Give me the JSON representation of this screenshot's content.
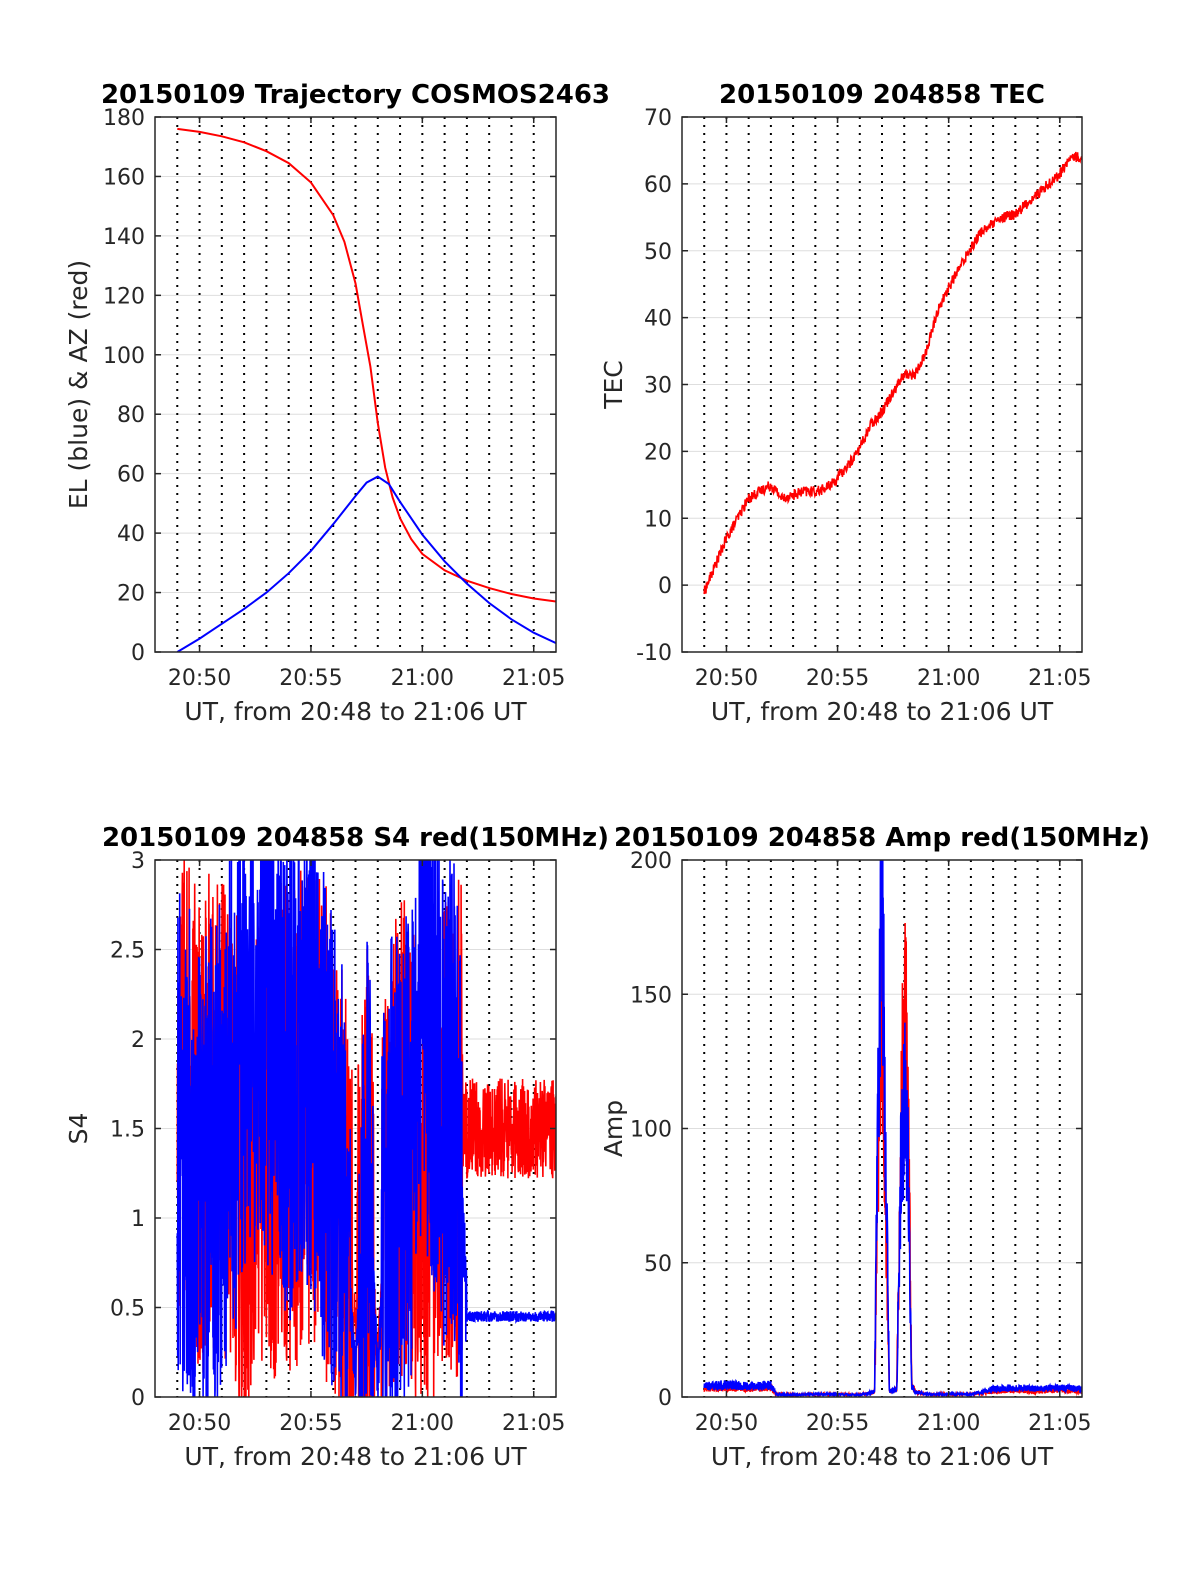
{
  "chart_data": [
    {
      "id": "trajectory",
      "type": "line",
      "title": "20150109 Trajectory COSMOS2463",
      "xlabel": "UT, from 20:48 to 21:06 UT",
      "ylabel": "EL (blue) & AZ (red)",
      "x_ticks": [
        "20:50",
        "20:55",
        "21:00",
        "21:05"
      ],
      "y_ticks": [
        "0",
        "20",
        "40",
        "60",
        "80",
        "100",
        "120",
        "140",
        "160",
        "180"
      ],
      "xlim": [
        "20:48",
        "21:06"
      ],
      "ylim": [
        0,
        180
      ],
      "grid": true,
      "series": [
        {
          "color": "#ff0000",
          "x": [
            "20:49",
            "20:50",
            "20:51",
            "20:52",
            "20:53",
            "20:54",
            "20:55",
            "20:56",
            "20:56:30",
            "20:57",
            "20:57:20",
            "20:57:40",
            "20:58",
            "20:58:20",
            "20:58:40",
            "20:59",
            "20:59:30",
            "21:00",
            "21:01",
            "21:02",
            "21:03",
            "21:04",
            "21:05",
            "21:06"
          ],
          "values": [
            176,
            175,
            173.5,
            171.5,
            168.5,
            164.5,
            158,
            147,
            138,
            124,
            110,
            96,
            77,
            62,
            52,
            45,
            38,
            33,
            27.5,
            24,
            21.5,
            19.5,
            18,
            17
          ]
        },
        {
          "color": "#0000ff",
          "x": [
            "20:49",
            "20:50",
            "20:51",
            "20:52",
            "20:53",
            "20:54",
            "20:55",
            "20:56",
            "20:57",
            "20:57:30",
            "20:58",
            "20:58:30",
            "20:59",
            "21:00",
            "21:01",
            "21:02",
            "21:03",
            "21:04",
            "21:05",
            "21:06"
          ],
          "values": [
            0,
            4.5,
            9.5,
            14.5,
            20,
            26.5,
            34,
            43,
            52.5,
            57,
            59,
            56.5,
            50.5,
            39.5,
            30.5,
            23,
            16.5,
            11,
            6.5,
            3
          ]
        }
      ]
    },
    {
      "id": "tec",
      "type": "line",
      "title": "20150109 204858 TEC",
      "xlabel": "UT, from 20:48 to 21:06 UT",
      "ylabel": "TEC",
      "x_ticks": [
        "20:50",
        "20:55",
        "21:00",
        "21:05"
      ],
      "y_ticks": [
        "-10",
        "0",
        "10",
        "20",
        "30",
        "40",
        "50",
        "60",
        "70"
      ],
      "xlim": [
        "20:48",
        "21:06"
      ],
      "ylim": [
        -10,
        70
      ],
      "grid": true,
      "series": [
        {
          "color": "#ff0000",
          "x": [
            "20:49",
            "20:49:30",
            "20:50",
            "20:50:30",
            "20:51",
            "20:51:30",
            "20:52",
            "20:52:30",
            "20:53",
            "20:53:30",
            "20:54",
            "20:54:30",
            "20:55",
            "20:55:30",
            "20:56",
            "20:56:30",
            "20:57",
            "20:57:30",
            "20:58",
            "20:58:30",
            "20:59",
            "20:59:30",
            "21:00",
            "21:00:30",
            "21:01",
            "21:01:30",
            "21:02",
            "21:02:30",
            "21:03",
            "21:03:30",
            "21:04",
            "21:04:30",
            "21:05",
            "21:05:30",
            "21:06"
          ],
          "values": [
            -1,
            3,
            7,
            10,
            13,
            14,
            15,
            13,
            13.5,
            14,
            14,
            14.5,
            16,
            18,
            20.5,
            24,
            26,
            29,
            31.5,
            31.5,
            35,
            41,
            44.5,
            47.5,
            50.5,
            53,
            54,
            55,
            55.5,
            57,
            58.5,
            60,
            61.5,
            64,
            64
          ]
        }
      ]
    },
    {
      "id": "s4",
      "type": "line",
      "title": "20150109 204858 S4 red(150MHz)",
      "xlabel": "UT, from 20:48 to 21:06 UT",
      "ylabel": "S4",
      "x_ticks": [
        "20:50",
        "20:55",
        "21:00",
        "21:05"
      ],
      "y_ticks": [
        "0",
        "0.5",
        "1",
        "1.5",
        "2",
        "2.5",
        "3"
      ],
      "xlim": [
        "20:48",
        "21:06"
      ],
      "ylim": [
        0,
        3
      ],
      "grid": true,
      "series": [
        {
          "color": "#ff0000",
          "x": [
            "20:49",
            "20:50",
            "20:51",
            "20:52",
            "20:53",
            "20:54",
            "20:55",
            "20:56",
            "20:56:30",
            "20:57",
            "20:57:30",
            "20:58",
            "20:58:30",
            "20:59",
            "20:59:30",
            "21:00",
            "21:00:30",
            "21:01",
            "21:01:30",
            "21:02",
            "21:03",
            "21:04",
            "21:05",
            "21:06"
          ],
          "values": [
            1.8,
            1.5,
            1.6,
            1.2,
            1.5,
            1.5,
            1.6,
            1.4,
            0.9,
            0.4,
            1.2,
            0.2,
            1.2,
            1.5,
            1.4,
            1.3,
            1.3,
            1.5,
            1.5,
            1.5,
            1.5,
            1.5,
            1.5,
            1.5
          ]
        },
        {
          "color": "#0000ff",
          "x": [
            "20:49",
            "20:50",
            "20:51",
            "20:52",
            "20:53",
            "20:54",
            "20:55",
            "20:56",
            "20:56:30",
            "20:57",
            "20:57:30",
            "20:58",
            "20:58:30",
            "20:59",
            "20:59:30",
            "21:00",
            "21:00:30",
            "21:01",
            "21:01:30",
            "21:02",
            "21:03",
            "21:04",
            "21:05",
            "21:06"
          ],
          "values": [
            1.5,
            1.2,
            1.4,
            2.0,
            2.1,
            1.8,
            1.9,
            1.3,
            1.0,
            0.1,
            1.4,
            0.1,
            1.3,
            1.2,
            1.5,
            2.3,
            2.0,
            1.6,
            1.7,
            0.45,
            0.45,
            0.45,
            0.45,
            0.45
          ]
        }
      ]
    },
    {
      "id": "amp",
      "type": "line",
      "title": "20150109 204858 Amp red(150MHz)",
      "xlabel": "UT, from 20:48 to 21:06 UT",
      "ylabel": "Amp",
      "x_ticks": [
        "20:50",
        "20:55",
        "21:00",
        "21:05"
      ],
      "y_ticks": [
        "0",
        "50",
        "100",
        "150",
        "200"
      ],
      "xlim": [
        "20:48",
        "21:06"
      ],
      "ylim": [
        0,
        200
      ],
      "grid": true,
      "series": [
        {
          "color": "#ff0000",
          "x": [
            "20:49",
            "20:50",
            "20:51",
            "20:52",
            "20:52:15",
            "20:53",
            "20:54",
            "20:55",
            "20:56",
            "20:56:40",
            "20:56:50",
            "20:57",
            "20:57:10",
            "20:57:20",
            "20:57:40",
            "20:57:50",
            "20:58",
            "20:58:10",
            "20:58:20",
            "20:58:30",
            "20:59",
            "21:00",
            "21:01",
            "21:02",
            "21:03",
            "21:04",
            "21:05",
            "21:06"
          ],
          "values": [
            3,
            3.5,
            3,
            3.5,
            1,
            0.8,
            1,
            1,
            0.8,
            2,
            90,
            150,
            70,
            2,
            3,
            90,
            150,
            120,
            5,
            2,
            1,
            1,
            1,
            2,
            2.5,
            2,
            2.5,
            2
          ]
        },
        {
          "color": "#0000ff",
          "x": [
            "20:49",
            "20:50",
            "20:51",
            "20:52",
            "20:52:15",
            "20:53",
            "20:54",
            "20:55",
            "20:56",
            "20:56:40",
            "20:56:50",
            "20:57",
            "20:57:10",
            "20:57:20",
            "20:57:40",
            "20:57:50",
            "20:58",
            "20:58:10",
            "20:58:20",
            "20:58:30",
            "20:59",
            "21:00",
            "21:01",
            "21:02",
            "21:03",
            "21:04",
            "21:05",
            "21:06"
          ],
          "values": [
            4,
            4.5,
            4,
            4.5,
            1,
            0.8,
            1,
            1,
            0.8,
            2,
            120,
            200,
            90,
            2,
            3,
            80,
            110,
            95,
            4,
            2,
            1,
            1,
            1,
            3,
            3.5,
            3,
            3.5,
            3
          ]
        }
      ]
    }
  ]
}
